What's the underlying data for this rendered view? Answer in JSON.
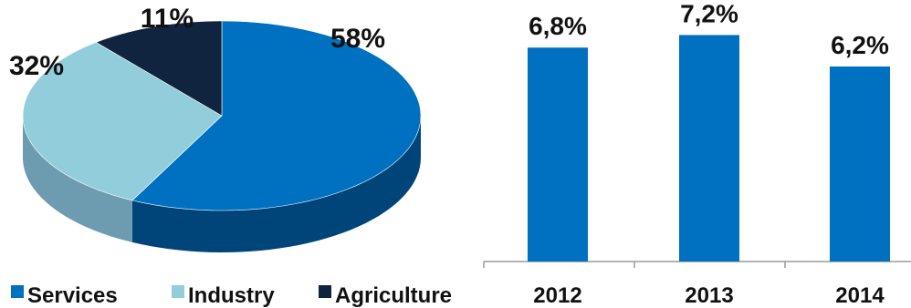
{
  "colors": {
    "services": "#0070c0",
    "services_side": "#00457a",
    "industry": "#92cddc",
    "industry_side": "#6d9bb0",
    "agriculture": "#10243f",
    "agriculture_side": "#0a1628",
    "axis": "#9a9a9a",
    "text": "#111111"
  },
  "chart_data": [
    {
      "type": "pie",
      "categories": [
        "Services",
        "Industry",
        "Agriculture"
      ],
      "values": [
        58,
        32,
        11
      ],
      "value_labels": [
        "58%",
        "32%",
        "11%"
      ],
      "three_d": true,
      "legend": {
        "position": "bottom",
        "entries": [
          "Services",
          "Industry",
          "Agriculture"
        ]
      }
    },
    {
      "type": "bar",
      "categories": [
        "2012",
        "2013",
        "2014"
      ],
      "values": [
        6.8,
        7.2,
        6.2
      ],
      "value_labels": [
        "6,8%",
        "7,2%",
        "6,2%"
      ],
      "grid": false
    }
  ]
}
